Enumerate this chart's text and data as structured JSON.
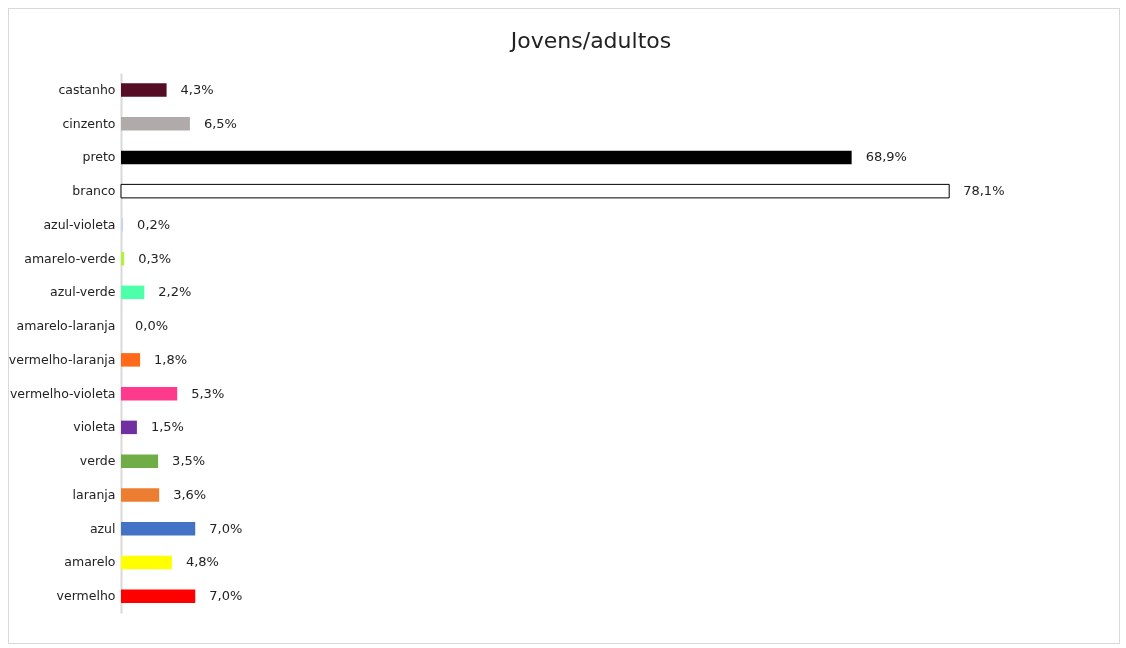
{
  "chart_data": {
    "type": "bar",
    "orientation": "horizontal",
    "title": "Jovens/adultos",
    "categories": [
      "castanho",
      "cinzento",
      "preto",
      "branco",
      "azul-violeta",
      "amarelo-verde",
      "azul-verde",
      "amarelo-laranja",
      "vermelho-laranja",
      "vermelho-violeta",
      "violeta",
      "verde",
      "laranja",
      "azul",
      "amarelo",
      "vermelho"
    ],
    "values": [
      4.3,
      6.5,
      68.9,
      78.1,
      0.2,
      0.3,
      2.2,
      0.0,
      1.8,
      5.3,
      1.5,
      3.5,
      3.6,
      7.0,
      4.8,
      7.0
    ],
    "colors": [
      "#540d25",
      "#b0aaaa",
      "#000000",
      "#ffffff",
      "#c9d5ea",
      "#b5f03a",
      "#4cffa8",
      "#f0a020",
      "#ff6a1a",
      "#ff3a8c",
      "#7030a0",
      "#70ad47",
      "#ed7d31",
      "#4472c4",
      "#ffff00",
      "#ff0000"
    ],
    "value_labels": [
      "4,3%",
      "6,5%",
      "68,9%",
      "78,1%",
      "0,2%",
      "0,3%",
      "2,2%",
      "0,0%",
      "1,8%",
      "5,3%",
      "1,5%",
      "3,5%",
      "3,6%",
      "7,0%",
      "4,8%",
      "7,0%"
    ]
  }
}
